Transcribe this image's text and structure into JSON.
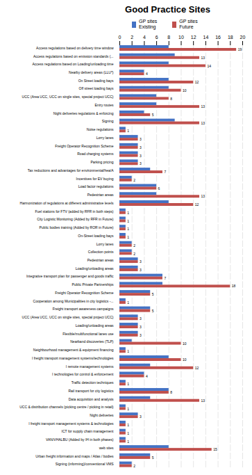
{
  "chart_data": {
    "type": "bar",
    "orientation": "horizontal",
    "title": "Good Practice Sites",
    "categories": [
      "Access regulations based on delivery time window",
      "Access regulations based on emission standards (...",
      "Access regulations based on Loading/unloading time",
      "Nearby delivery areas (LLU*)",
      "On Street loading bays",
      "Off street loading bays",
      "UCC (Area UCC, UCC on single sites, special project UCC)",
      "Entry routes",
      "Night deliveries regulations & enforcing",
      "Signing",
      "Noise regulations",
      "Lorry lanes",
      "Freight Operator Recognition Scheme",
      "Road charging systems",
      "Parking pricing",
      "Tax reductions and advantages for environmental/hea/A",
      "Incentives for EV buying",
      "Load factor regulations",
      "Pedestrian areas",
      "Harmonization of regulations at different administrative levels",
      "Fuel stations for FTV (added by RFR in both steps)",
      "City Logistic Monitoring (Added by RFR in Future)",
      "Public bodies training (Added by ROR in Future)",
      "On-Street loading bays",
      "Lorry lanes",
      "Collection points",
      "Pedestrian areas",
      "Loading/unloading areas",
      "Integrative transport plan for passenger and goods traffic",
      "Public Private Partnerships",
      "Freight Operator Recognition Scheme",
      "Cooperation among Municipalities in city logistics -...",
      "Freight transport awareness campaigns",
      "UCC (Area UCC, UCC on single sites, special project UCC)",
      "Loading/unloading areas",
      "Flexible/multifunctional lanes use",
      "Nearband discoveries (TLP)",
      "Neighbourhood management & equipment financing",
      "I freight transport management systems/technologies",
      "I remote management systems",
      "I technologies for control & enforcement",
      "Traffic detection techniques",
      "Rail transport for city logistics",
      "Data acquisition and analysis",
      "UCC & distribution channels (picking centre / picking in retail)",
      "Night deliveries",
      "I freight transport management systems & technologies",
      "ICT for supply chain management",
      "VAN/VHALBU (Added by IH in both phases)",
      "web sites",
      "Urban freight information and maps / Atlas / bodies",
      "Signing (informing)/conventional VMS"
    ],
    "series": [
      {
        "name": "GP sites\nExisting",
        "color": "#4472C4",
        "data_labels": false,
        "values": [
          8,
          9,
          8,
          4,
          8,
          8,
          6,
          6,
          4,
          9,
          1,
          3,
          3,
          3,
          3,
          5,
          2,
          6,
          6,
          8,
          1,
          1,
          1,
          1,
          2,
          2,
          3,
          3,
          7,
          7,
          5,
          1,
          5,
          3,
          3,
          3,
          2,
          1,
          8,
          5,
          4,
          1,
          8,
          5,
          1,
          3,
          1,
          1,
          1,
          8,
          5,
          2
        ]
      },
      {
        "name": "GP sites\nFuture",
        "color": "#C0504D",
        "data_labels": true,
        "values": [
          19,
          13,
          14,
          4,
          12,
          10,
          8,
          13,
          5,
          13,
          1,
          3,
          3,
          3,
          3,
          7,
          2,
          6,
          13,
          12,
          1,
          1,
          1,
          1,
          2,
          2,
          3,
          3,
          7,
          18,
          5,
          1,
          5,
          3,
          3,
          3,
          10,
          1,
          10,
          12,
          4,
          1,
          8,
          13,
          1,
          3,
          1,
          1,
          1,
          15,
          5,
          2
        ]
      }
    ],
    "xlim": [
      0,
      20
    ],
    "xticks": [
      0,
      2,
      4,
      6,
      8,
      10,
      12,
      14,
      16,
      18,
      20
    ],
    "grid": true
  }
}
